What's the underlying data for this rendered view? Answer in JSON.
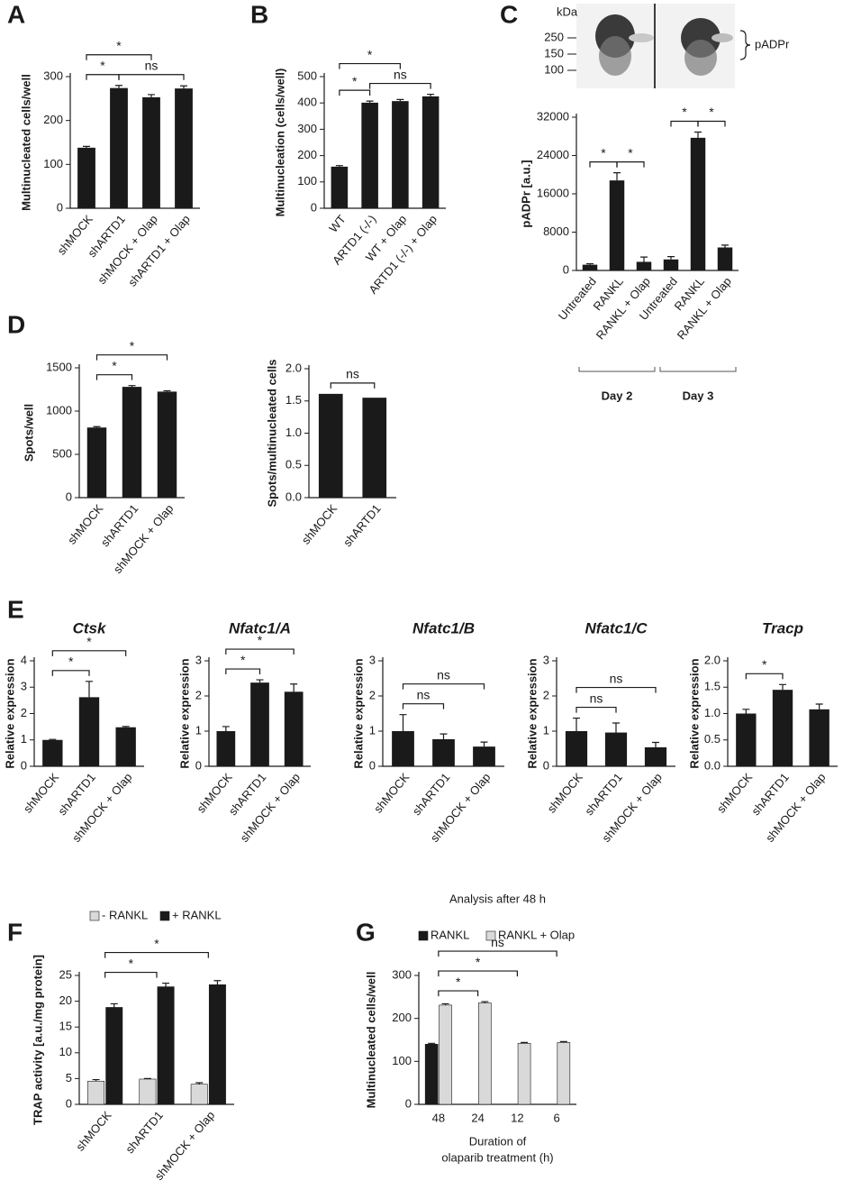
{
  "chart_data": [
    {
      "type": "bar",
      "panel": "A",
      "ylabel": "Multinucleated cells/well",
      "categories": [
        "shMOCK",
        "shARTD1",
        "shMOCK + Olap",
        "shARTD1 + Olap"
      ],
      "values": [
        138,
        274,
        253,
        273
      ],
      "errors": [
        3,
        6,
        6,
        6
      ],
      "color": "#1a1a1a",
      "ylim": [
        0,
        300
      ],
      "yticks": [
        0,
        100,
        200,
        300
      ],
      "brackets": [
        {
          "label": "*",
          "between": [
            0,
            1
          ]
        },
        {
          "label": "ns",
          "between": [
            1,
            3
          ]
        },
        {
          "label": "*",
          "between": [
            0,
            2
          ]
        }
      ]
    },
    {
      "type": "bar",
      "panel": "B",
      "ylabel": "Multinucleation (cells/well)",
      "categories": [
        "WT",
        "ARTD1 (-/-)",
        "WT + Olap",
        "ARTD1 (-/-) + Olap"
      ],
      "values": [
        158,
        401,
        407,
        425
      ],
      "errors": [
        4,
        6,
        6,
        8
      ],
      "color": "#1a1a1a",
      "ylim": [
        0,
        500
      ],
      "yticks": [
        0,
        100,
        200,
        300,
        400,
        500
      ],
      "brackets": [
        {
          "label": "*",
          "between": [
            0,
            1
          ]
        },
        {
          "label": "ns",
          "between": [
            1,
            3
          ]
        },
        {
          "label": "*",
          "between": [
            0,
            2
          ]
        }
      ]
    },
    {
      "type": "bar",
      "panel": "C",
      "ylabel": "pADPr [a.u.]",
      "blot": {
        "unit": "kDa",
        "markers": [
          250,
          150,
          100
        ],
        "label": "pADPr"
      },
      "categories": [
        "Untreated",
        "RANKL",
        "RANKL + Olap",
        "Untreated",
        "RANKL",
        "RANKL + Olap"
      ],
      "values": [
        1200,
        18800,
        1800,
        2300,
        27700,
        4800
      ],
      "errors": [
        200,
        1600,
        1000,
        600,
        1200,
        500
      ],
      "color": "#1a1a1a",
      "ylim": [
        0,
        32000
      ],
      "yticks": [
        0,
        8000,
        16000,
        24000,
        32000
      ],
      "groups": [
        {
          "label": "Day 2",
          "span": [
            0,
            2
          ]
        },
        {
          "label": "Day 3",
          "span": [
            3,
            5
          ]
        }
      ],
      "brackets": [
        {
          "label": "*",
          "between": [
            0,
            1
          ]
        },
        {
          "label": "*",
          "between": [
            1,
            2
          ]
        },
        {
          "label": "*",
          "between": [
            3,
            4
          ]
        },
        {
          "label": "*",
          "between": [
            4,
            5
          ]
        }
      ]
    },
    {
      "type": "bar",
      "panel": "D",
      "ylabel": "Spots/well",
      "categories": [
        "shMOCK",
        "shARTD1",
        "shMOCK + Olap"
      ],
      "values": [
        810,
        1280,
        1225
      ],
      "errors": [
        10,
        15,
        10
      ],
      "color": "#1a1a1a",
      "ylim": [
        0,
        1500
      ],
      "yticks": [
        0,
        500,
        1000,
        1500
      ],
      "brackets": [
        {
          "label": "*",
          "between": [
            0,
            1
          ]
        },
        {
          "label": "*",
          "between": [
            0,
            2
          ]
        }
      ]
    },
    {
      "type": "bar",
      "ylabel": "Spots/multinucleated cells",
      "categories": [
        "shMOCK",
        "shARTD1"
      ],
      "values": [
        1.61,
        1.55
      ],
      "color": "#1a1a1a",
      "ylim": [
        0,
        2
      ],
      "yticks": [
        {
          "value": 0,
          "label": "0.0"
        },
        0.5,
        {
          "value": 1,
          "label": "1.0"
        },
        1.5,
        {
          "value": 2,
          "label": "2.0"
        }
      ],
      "brackets": [
        {
          "label": "ns",
          "between": [
            0,
            1
          ]
        }
      ]
    },
    {
      "type": "bar",
      "panel": "E",
      "title": "Ctsk",
      "ylabel": "Relative expression",
      "categories": [
        "shMOCK",
        "shARTD1",
        "shMOCK + Olap"
      ],
      "values": [
        1.0,
        2.62,
        1.48
      ],
      "errors": [
        0.02,
        0.6,
        0.03
      ],
      "color": "#1a1a1a",
      "ylim": [
        0,
        4
      ],
      "yticks": [
        0,
        1,
        2,
        3,
        4
      ],
      "brackets": [
        {
          "label": "*",
          "between": [
            0,
            1
          ]
        },
        {
          "label": "*",
          "between": [
            0,
            2
          ]
        }
      ]
    },
    {
      "type": "bar",
      "title": "Nfatc1/A",
      "ylabel": "Relative expression",
      "categories": [
        "shMOCK",
        "shARTD1",
        "shMOCK + Olap"
      ],
      "values": [
        1.0,
        2.38,
        2.12
      ],
      "errors": [
        0.13,
        0.08,
        0.22
      ],
      "color": "#1a1a1a",
      "ylim": [
        0,
        3
      ],
      "yticks": [
        0,
        1,
        2,
        3
      ],
      "brackets": [
        {
          "label": "*",
          "between": [
            0,
            1
          ]
        },
        {
          "label": "*",
          "between": [
            0,
            2
          ]
        }
      ]
    },
    {
      "type": "bar",
      "title": "Nfatc1/B",
      "ylabel": "Relative expression",
      "categories": [
        "shMOCK",
        "shARTD1",
        "shMOCK + Olap"
      ],
      "values": [
        1.0,
        0.77,
        0.56
      ],
      "errors": [
        0.47,
        0.15,
        0.13
      ],
      "color": "#1a1a1a",
      "ylim": [
        0,
        3
      ],
      "yticks": [
        0,
        1,
        2,
        3
      ],
      "brackets": [
        {
          "label": "ns",
          "between": [
            0,
            1
          ]
        },
        {
          "label": "ns",
          "between": [
            0,
            2
          ]
        }
      ]
    },
    {
      "type": "bar",
      "title": "Nfatc1/C",
      "ylabel": "Relative expression",
      "categories": [
        "shMOCK",
        "shARTD1",
        "shMOCK + Olap"
      ],
      "values": [
        1.0,
        0.96,
        0.54
      ],
      "errors": [
        0.37,
        0.27,
        0.14
      ],
      "color": "#1a1a1a",
      "ylim": [
        0,
        3
      ],
      "yticks": [
        0,
        1,
        2,
        3
      ],
      "brackets": [
        {
          "label": "ns",
          "between": [
            0,
            1
          ]
        },
        {
          "label": "ns",
          "between": [
            0,
            2
          ]
        }
      ]
    },
    {
      "type": "bar",
      "title": "Tracp",
      "ylabel": "Relative expression",
      "categories": [
        "shMOCK",
        "shARTD1",
        "shMOCK + Olap"
      ],
      "values": [
        1.0,
        1.45,
        1.08
      ],
      "errors": [
        0.08,
        0.1,
        0.1
      ],
      "color": "#1a1a1a",
      "ylim": [
        0,
        2
      ],
      "yticks": [
        {
          "value": 0,
          "label": "0.0"
        },
        0.5,
        {
          "value": 1,
          "label": "1.0"
        },
        1.5,
        {
          "value": 2,
          "label": "2.0"
        }
      ],
      "brackets": [
        {
          "label": "*",
          "between": [
            0,
            1
          ]
        }
      ]
    },
    {
      "type": "grouped_bar",
      "panel": "F",
      "ylabel": "TRAP activity [a.u./mg protein]",
      "categories": [
        "shMOCK",
        "shARTD1",
        "shMOCK + Olap"
      ],
      "series": [
        {
          "name": "- RANKL",
          "color": "#d9d9d9",
          "values": [
            4.5,
            4.9,
            3.9
          ],
          "errors": [
            0.3,
            0.1,
            0.3
          ]
        },
        {
          "name": "+ RANKL",
          "color": "#1a1a1a",
          "values": [
            18.8,
            22.8,
            23.2
          ],
          "errors": [
            0.7,
            0.7,
            0.8
          ]
        }
      ],
      "ylim": [
        0,
        25
      ],
      "yticks": [
        0,
        5,
        10,
        15,
        20,
        25
      ],
      "brackets": [
        {
          "label": "*",
          "between": [
            0,
            1
          ]
        },
        {
          "label": "*",
          "between": [
            0,
            2
          ]
        }
      ]
    },
    {
      "type": "grouped_bar",
      "panel": "G",
      "title": "Analysis after 48 h",
      "ylabel": "Multinucleated cells/well",
      "xlabel": [
        "Duration of",
        "olaparib treatment (h)"
      ],
      "categories": [
        "48",
        "24",
        "12",
        "6"
      ],
      "series": [
        {
          "name": "RANKL",
          "color": "#1a1a1a",
          "values": [
            140,
            null,
            null,
            null
          ],
          "errors": [
            2,
            null,
            null,
            null
          ]
        },
        {
          "name": "RANKL + Olap",
          "color": "#d9d9d9",
          "values": [
            231,
            236,
            142,
            144
          ],
          "errors": [
            3,
            3,
            2,
            2
          ]
        }
      ],
      "ylim": [
        0,
        300
      ],
      "yticks": [
        0,
        100,
        200,
        300
      ],
      "brackets": [
        {
          "label": "*",
          "between": [
            0,
            1
          ]
        },
        {
          "label": "*",
          "between": [
            0,
            2
          ]
        },
        {
          "label": "ns",
          "between": [
            0,
            3
          ]
        }
      ]
    }
  ]
}
